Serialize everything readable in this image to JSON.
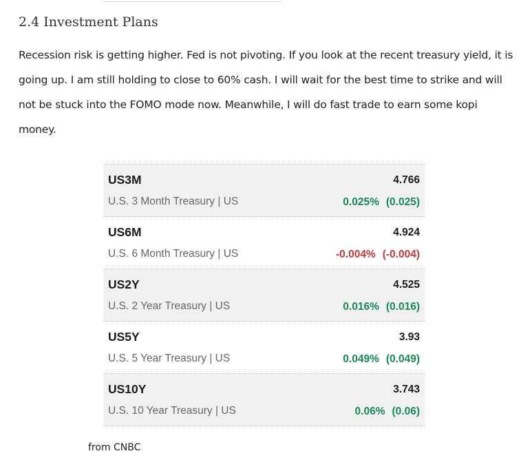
{
  "section": {
    "heading": "2.4 Investment Plans",
    "paragraph": "Recession risk is getting higher. Fed is not pivoting. If you look at the recent treasury yield, it is going up. I am still holding to close to 60% cash. I will wait for the best time to strike and will not be stuck into the FOMO mode now. Meanwhile, I will do fast trade to earn some kopi money."
  },
  "treasury_table": {
    "rows": [
      {
        "symbol": "US3M",
        "name": "U.S. 3 Month Treasury | US",
        "price": "4.766",
        "change_pct": "0.025%",
        "change": "(0.025)",
        "direction": "up"
      },
      {
        "symbol": "US6M",
        "name": "U.S. 6 Month Treasury | US",
        "price": "4.924",
        "change_pct": "-0.004%",
        "change": "(-0.004)",
        "direction": "down"
      },
      {
        "symbol": "US2Y",
        "name": "U.S. 2 Year Treasury | US",
        "price": "4.525",
        "change_pct": "0.016%",
        "change": "(0.016)",
        "direction": "up"
      },
      {
        "symbol": "US5Y",
        "name": "U.S. 5 Year Treasury | US",
        "price": "3.93",
        "change_pct": "0.049%",
        "change": "(0.049)",
        "direction": "up"
      },
      {
        "symbol": "US10Y",
        "name": "U.S. 10 Year Treasury | US",
        "price": "3.743",
        "change_pct": "0.06%",
        "change": "(0.06)",
        "direction": "up"
      }
    ]
  },
  "caption": "from CNBC",
  "colors": {
    "positive": "#188a55",
    "negative": "#c33a3a",
    "row_shade": "#f1f1f1"
  }
}
